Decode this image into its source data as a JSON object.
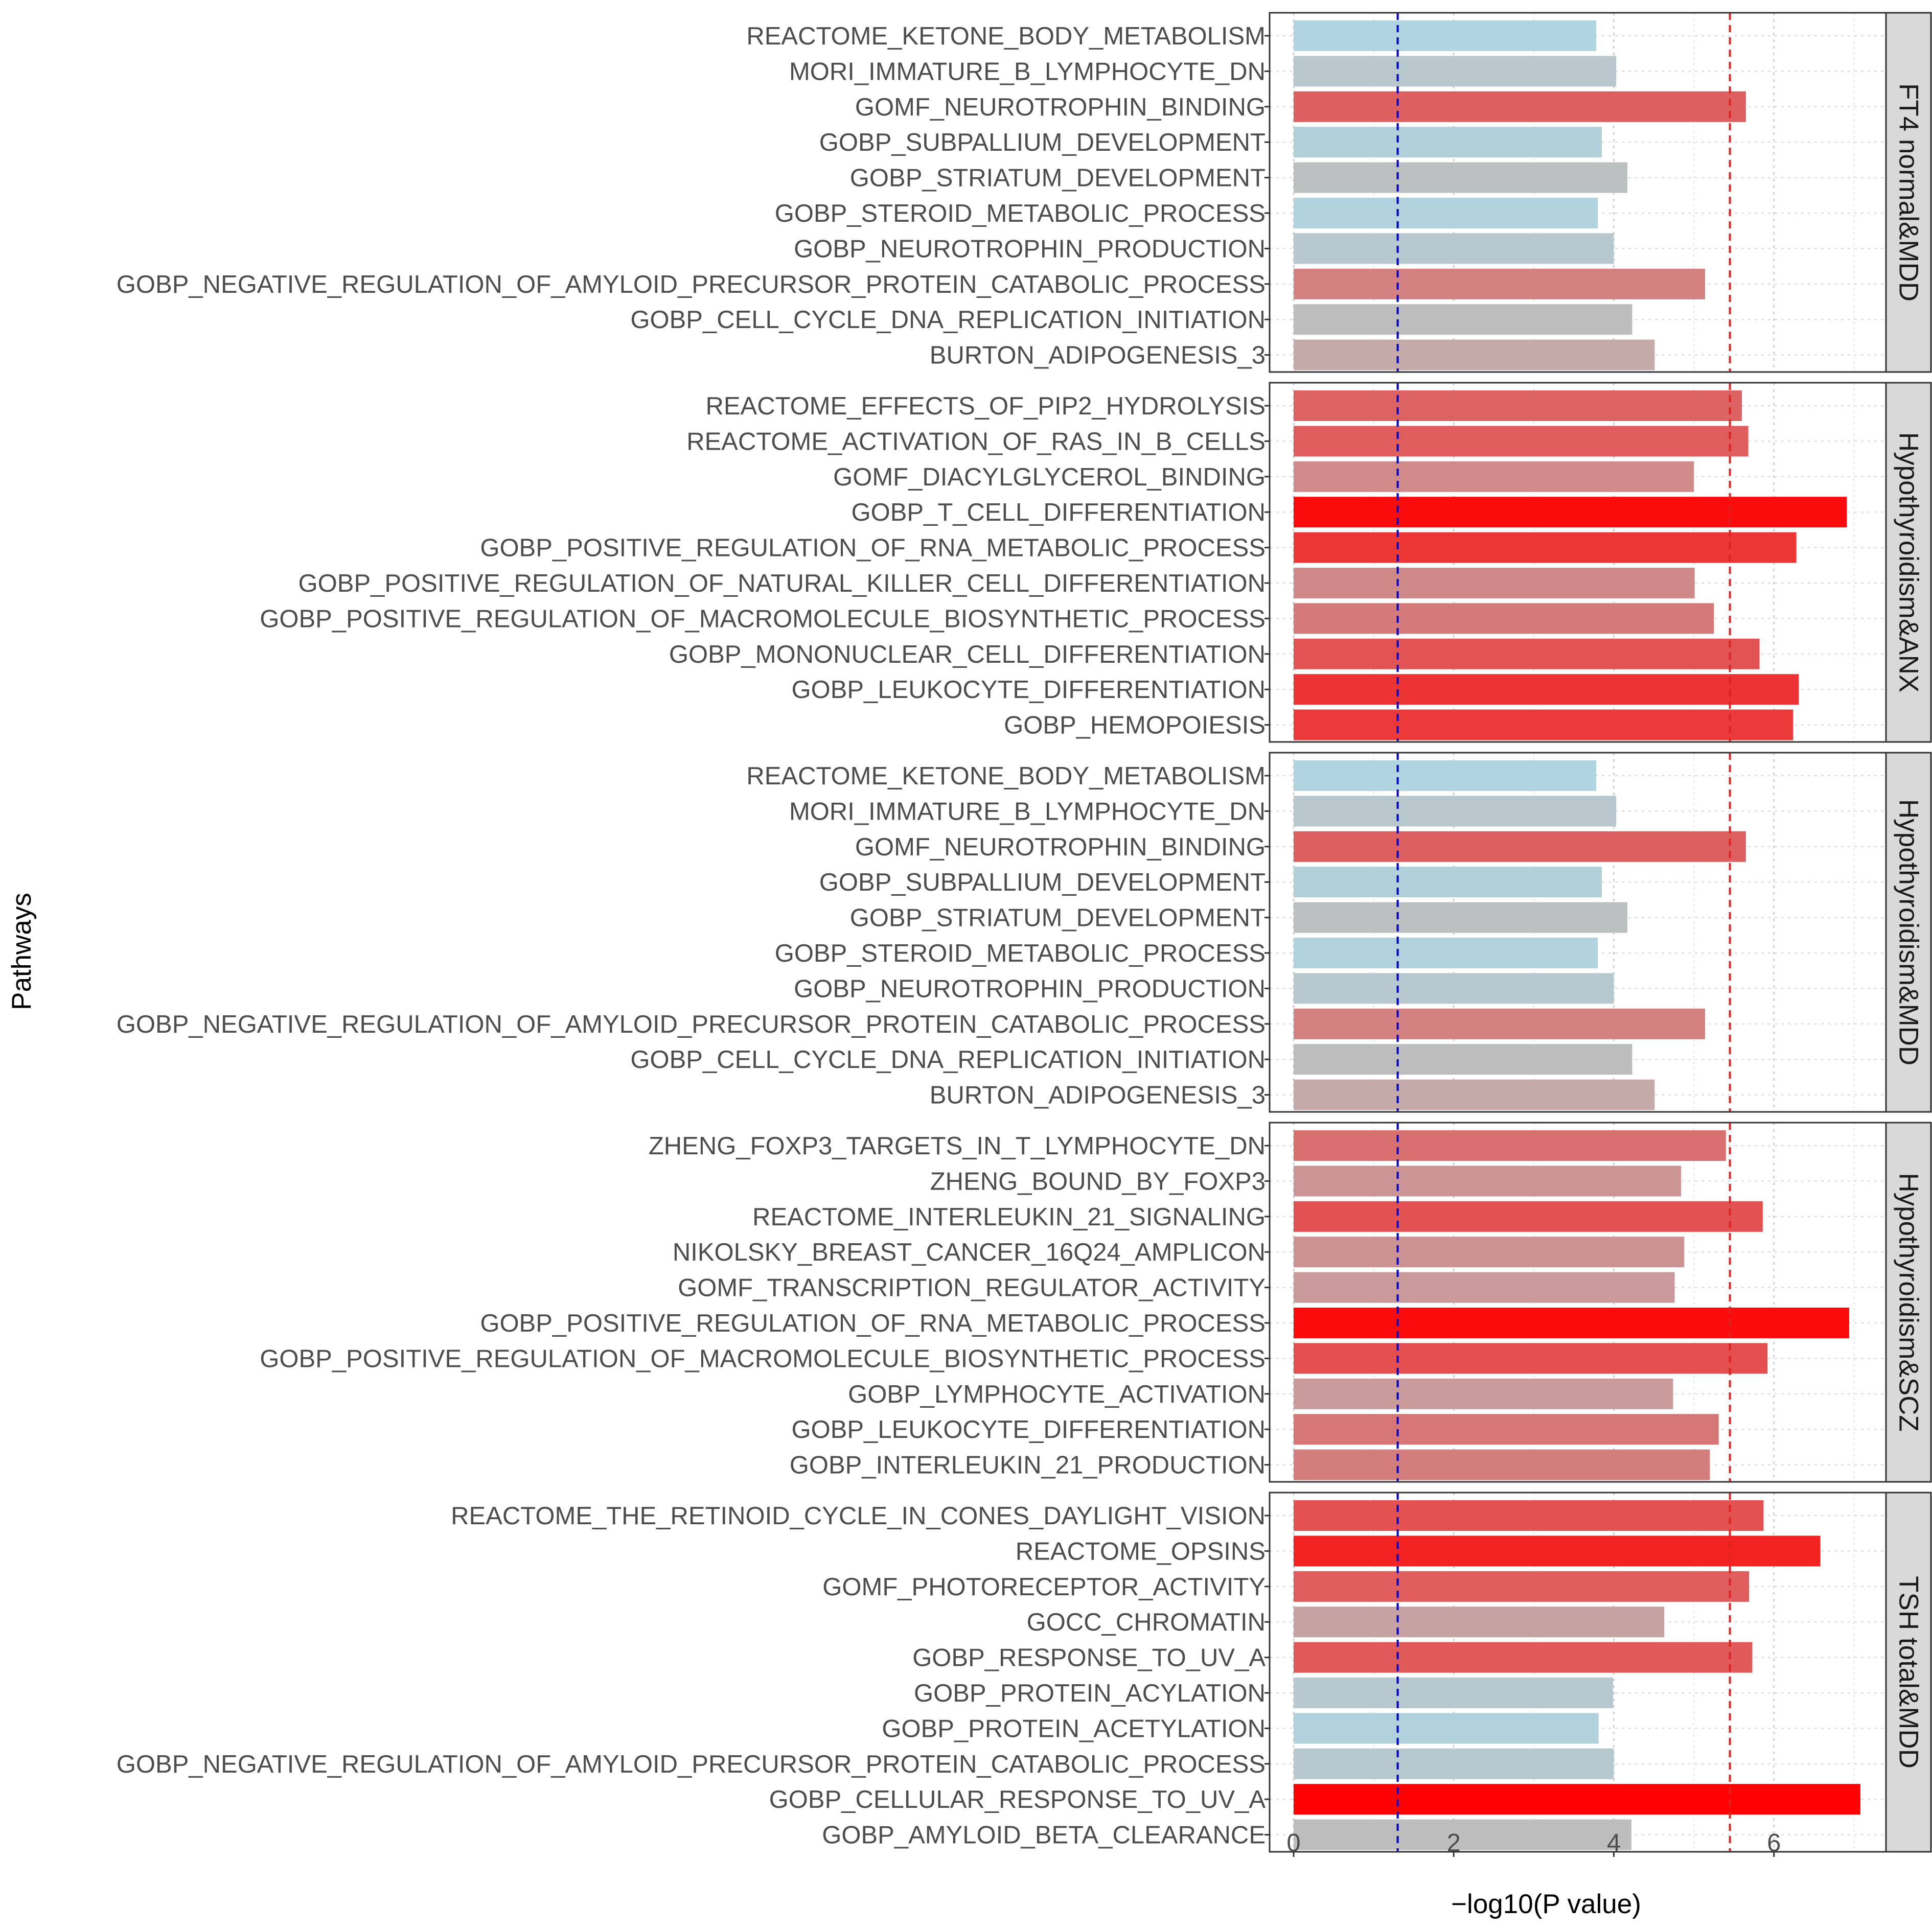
{
  "chart_data": {
    "type": "bar",
    "orientation": "horizontal",
    "xlabel": "−log10(P value)",
    "ylabel": "Pathways",
    "xlim": [
      -0.3,
      7.4
    ],
    "xticks": [
      0,
      2,
      4,
      6
    ],
    "xtick_labels": [
      "0",
      "2",
      "4",
      "6"
    ],
    "reference_lines": [
      {
        "name": "blue-threshold",
        "value": 1.3,
        "color": "#0000cc",
        "style": "dashed"
      },
      {
        "name": "red-threshold",
        "value": 5.45,
        "color": "#dd2222",
        "style": "dashed"
      }
    ],
    "color_scale": {
      "low": "#add8e6",
      "high": "#ff0000",
      "domain": [
        3.7,
        7.1
      ]
    },
    "panels": [
      {
        "strip_label": "FT4 normal&MDD",
        "categories": [
          "REACTOME_KETONE_BODY_METABOLISM",
          "MORI_IMMATURE_B_LYMPHOCYTE_DN",
          "GOMF_NEUROTROPHIN_BINDING",
          "GOBP_SUBPALLIUM_DEVELOPMENT",
          "GOBP_STRIATUM_DEVELOPMENT",
          "GOBP_STEROID_METABOLIC_PROCESS",
          "GOBP_NEUROTROPHIN_PRODUCTION",
          "GOBP_NEGATIVE_REGULATION_OF_AMYLOID_PRECURSOR_PROTEIN_CATABOLIC_PROCESS",
          "GOBP_CELL_CYCLE_DNA_REPLICATION_INITIATION",
          "BURTON_ADIPOGENESIS_3"
        ],
        "values": [
          3.78,
          4.03,
          5.65,
          3.85,
          4.17,
          3.8,
          4.0,
          5.14,
          4.23,
          4.51
        ]
      },
      {
        "strip_label": "Hypothyroidism&ANX",
        "categories": [
          "REACTOME_EFFECTS_OF_PIP2_HYDROLYSIS",
          "REACTOME_ACTIVATION_OF_RAS_IN_B_CELLS",
          "GOMF_DIACYLGLYCEROL_BINDING",
          "GOBP_T_CELL_DIFFERENTIATION",
          "GOBP_POSITIVE_REGULATION_OF_RNA_METABOLIC_PROCESS",
          "GOBP_POSITIVE_REGULATION_OF_NATURAL_KILLER_CELL_DIFFERENTIATION",
          "GOBP_POSITIVE_REGULATION_OF_MACROMOLECULE_BIOSYNTHETIC_PROCESS",
          "GOBP_MONONUCLEAR_CELL_DIFFERENTIATION",
          "GOBP_LEUKOCYTE_DIFFERENTIATION",
          "GOBP_HEMOPOIESIS"
        ],
        "values": [
          5.6,
          5.68,
          5.0,
          6.91,
          6.28,
          5.01,
          5.25,
          5.82,
          6.31,
          6.24
        ]
      },
      {
        "strip_label": "Hypothyroidism&MDD",
        "categories": [
          "REACTOME_KETONE_BODY_METABOLISM",
          "MORI_IMMATURE_B_LYMPHOCYTE_DN",
          "GOMF_NEUROTROPHIN_BINDING",
          "GOBP_SUBPALLIUM_DEVELOPMENT",
          "GOBP_STRIATUM_DEVELOPMENT",
          "GOBP_STEROID_METABOLIC_PROCESS",
          "GOBP_NEUROTROPHIN_PRODUCTION",
          "GOBP_NEGATIVE_REGULATION_OF_AMYLOID_PRECURSOR_PROTEIN_CATABOLIC_PROCESS",
          "GOBP_CELL_CYCLE_DNA_REPLICATION_INITIATION",
          "BURTON_ADIPOGENESIS_3"
        ],
        "values": [
          3.78,
          4.03,
          5.65,
          3.85,
          4.17,
          3.8,
          4.0,
          5.14,
          4.23,
          4.51
        ]
      },
      {
        "strip_label": "Hypothyroidism&SCZ",
        "categories": [
          "ZHENG_FOXP3_TARGETS_IN_T_LYMPHOCYTE_DN",
          "ZHENG_BOUND_BY_FOXP3",
          "REACTOME_INTERLEUKIN_21_SIGNALING",
          "NIKOLSKY_BREAST_CANCER_16Q24_AMPLICON",
          "GOMF_TRANSCRIPTION_REGULATOR_ACTIVITY",
          "GOBP_POSITIVE_REGULATION_OF_RNA_METABOLIC_PROCESS",
          "GOBP_POSITIVE_REGULATION_OF_MACROMOLECULE_BIOSYNTHETIC_PROCESS",
          "GOBP_LYMPHOCYTE_ACTIVATION",
          "GOBP_LEUKOCYTE_DIFFERENTIATION",
          "GOBP_INTERLEUKIN_21_PRODUCTION"
        ],
        "values": [
          5.4,
          4.84,
          5.86,
          4.88,
          4.76,
          6.94,
          5.92,
          4.74,
          5.31,
          5.2
        ]
      },
      {
        "strip_label": "TSH total&MDD",
        "categories": [
          "REACTOME_THE_RETINOID_CYCLE_IN_CONES_DAYLIGHT_VISION",
          "REACTOME_OPSINS",
          "GOMF_PHOTORECEPTOR_ACTIVITY",
          "GOCC_CHROMATIN",
          "GOBP_RESPONSE_TO_UV_A",
          "GOBP_PROTEIN_ACYLATION",
          "GOBP_PROTEIN_ACETYLATION",
          "GOBP_NEGATIVE_REGULATION_OF_AMYLOID_PRECURSOR_PROTEIN_CATABOLIC_PROCESS",
          "GOBP_CELLULAR_RESPONSE_TO_UV_A",
          "GOBP_AMYLOID_BETA_CLEARANCE"
        ],
        "values": [
          5.87,
          6.58,
          5.69,
          4.63,
          5.73,
          3.99,
          3.81,
          4.0,
          7.08,
          4.22
        ]
      }
    ]
  }
}
